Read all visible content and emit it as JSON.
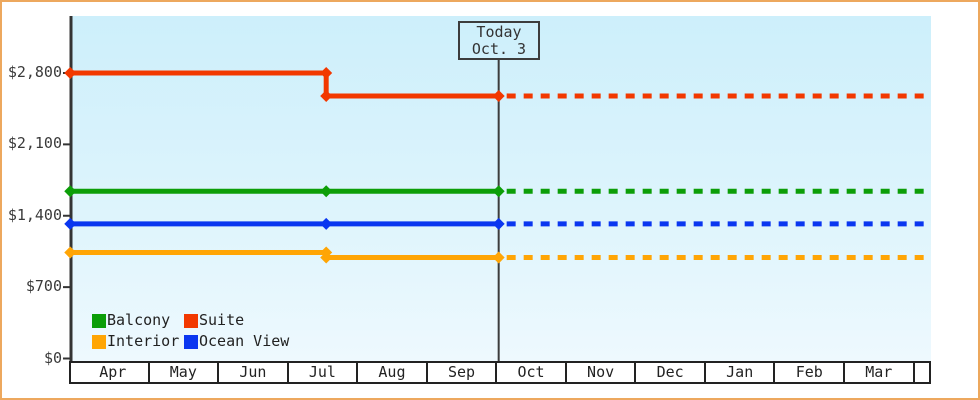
{
  "chart_data": {
    "type": "line",
    "title": "",
    "x_axis": {
      "months": [
        "Apr",
        "May",
        "Jun",
        "Jul",
        "Aug",
        "Sep",
        "Oct",
        "Nov",
        "Dec",
        "Jan",
        "Feb",
        "Mar"
      ]
    },
    "y_axis": {
      "min": 0,
      "max": 2800,
      "ticks": [
        {
          "value": 0,
          "label": "$0"
        },
        {
          "value": 700,
          "label": "$700"
        },
        {
          "value": 1400,
          "label": "$1,400"
        },
        {
          "value": 2100,
          "label": "$2,100"
        },
        {
          "value": 2800,
          "label": "$2,800"
        }
      ]
    },
    "today": {
      "line1": "Today",
      "line2": "Oct. 3",
      "m": 6.06
    },
    "series_start_m": -0.1,
    "forecast_end_m": 12.27,
    "series": [
      {
        "name": "Suite",
        "color": "#f23800",
        "points": [
          {
            "m": -0.1,
            "value": 2800
          },
          {
            "m": 3.58,
            "value": 2800
          },
          {
            "m": 3.58,
            "value": 2575
          },
          {
            "m": 6.06,
            "value": 2575
          }
        ],
        "forecast_value": 2575
      },
      {
        "name": "Balcony",
        "color": "#0c9e08",
        "points": [
          {
            "m": -0.1,
            "value": 1640
          },
          {
            "m": 3.58,
            "value": 1640
          },
          {
            "m": 6.06,
            "value": 1640
          }
        ],
        "forecast_value": 1640
      },
      {
        "name": "Ocean View",
        "color": "#0a36f0",
        "points": [
          {
            "m": -0.1,
            "value": 1320
          },
          {
            "m": 3.58,
            "value": 1320
          },
          {
            "m": 6.06,
            "value": 1320
          }
        ],
        "forecast_value": 1320
      },
      {
        "name": "Interior",
        "color": "#ffa505",
        "points": [
          {
            "m": -0.1,
            "value": 1040
          },
          {
            "m": 3.58,
            "value": 1040
          },
          {
            "m": 3.58,
            "value": 990
          },
          {
            "m": 6.06,
            "value": 990
          }
        ],
        "forecast_value": 990
      }
    ]
  },
  "legend": {
    "items": [
      {
        "label": "Balcony",
        "color": "#0c9e08"
      },
      {
        "label": "Suite",
        "color": "#f23800"
      },
      {
        "label": "Interior",
        "color": "#ffa505"
      },
      {
        "label": "Ocean View",
        "color": "#0a36f0"
      }
    ]
  },
  "colors": {
    "frame_border": "#eda85e",
    "axis": "#343434",
    "today_line": "#3c3c3c",
    "plot_top": "#cdeffb",
    "plot_bottom": "#eef9fe"
  }
}
